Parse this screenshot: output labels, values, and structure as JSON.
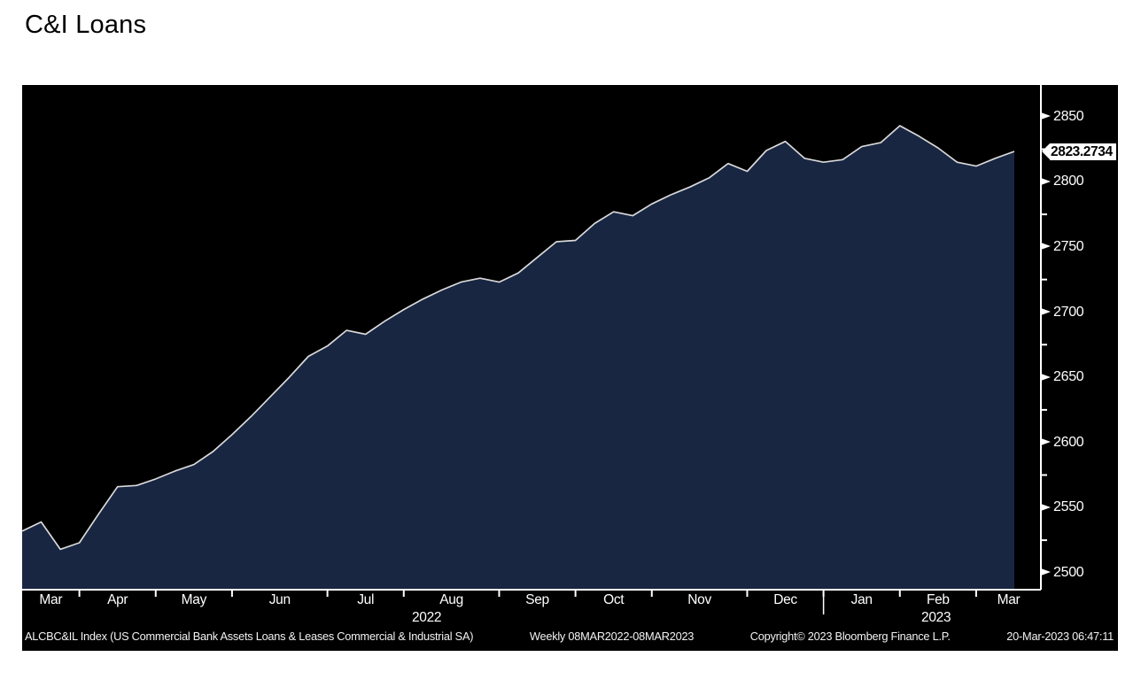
{
  "page": {
    "title": "C&I Loans"
  },
  "chart_data": {
    "type": "area",
    "title": "C&I Loans",
    "series_name": "ALCBC&IL Index",
    "frequency": "Weekly",
    "period": "08MAR2022-08MAR2023",
    "last_value": "2823.2734",
    "values": [
      2532,
      2539,
      2518,
      2523,
      2545,
      2566,
      2567,
      2572,
      2578,
      2583,
      2593,
      2606,
      2620,
      2635,
      2650,
      2666,
      2674,
      2686,
      2683,
      2693,
      2702,
      2710,
      2717,
      2723,
      2726,
      2723,
      2730,
      2742,
      2754,
      2755,
      2768,
      2777,
      2774,
      2783,
      2790,
      2796,
      2803,
      2814,
      2808,
      2824,
      2831,
      2818,
      2815,
      2817,
      2827,
      2830,
      2843,
      2835,
      2826,
      2815,
      2812,
      2818,
      2823.2734
    ],
    "ylim": [
      2487,
      2874
    ],
    "y_axis": {
      "major_ticks": [
        2850,
        2800,
        2750,
        2700,
        2650,
        2600,
        2550,
        2500
      ],
      "minor_ticks": [
        2825,
        2775,
        2725,
        2675,
        2625,
        2575,
        2525
      ]
    },
    "x_axis": {
      "tick_weeks": [
        3,
        7,
        11,
        16,
        20,
        25,
        29,
        33,
        38,
        42,
        46,
        50
      ],
      "labels": [
        {
          "label": "Mar",
          "week": 1.5
        },
        {
          "label": "Apr",
          "week": 5
        },
        {
          "label": "May",
          "week": 9
        },
        {
          "label": "Jun",
          "week": 13.5
        },
        {
          "label": "Jul",
          "week": 18
        },
        {
          "label": "Aug",
          "week": 22.5
        },
        {
          "label": "Sep",
          "week": 27
        },
        {
          "label": "Oct",
          "week": 31
        },
        {
          "label": "Nov",
          "week": 35.5
        },
        {
          "label": "Dec",
          "week": 40
        },
        {
          "label": "Jan",
          "week": 44
        },
        {
          "label": "Feb",
          "week": 48
        },
        {
          "label": "Mar",
          "week": 51.7
        }
      ],
      "year_labels": [
        {
          "label": "2022",
          "week": 21.2
        },
        {
          "label": "2023",
          "week": 47.9
        }
      ],
      "year_divider_week": 42
    },
    "legend_position": "none",
    "grid": false
  },
  "footer": {
    "parts": [
      "ALCBC&IL Index (US Commercial Bank Assets Loans & Leases Commercial & Industrial SA)",
      "Weekly 08MAR2022-08MAR2023",
      "Copyright© 2023 Bloomberg Finance L.P.",
      "20-Mar-2023 06:47:11"
    ]
  },
  "colors": {
    "panel_bg": "#000000",
    "area_fill": "#182642",
    "line": "#d9d9d9",
    "axis": "#ffffff",
    "axis_text": "#ffffff",
    "tag_bg": "#ffffff",
    "tag_text": "#000000",
    "title_text": "#000000"
  }
}
